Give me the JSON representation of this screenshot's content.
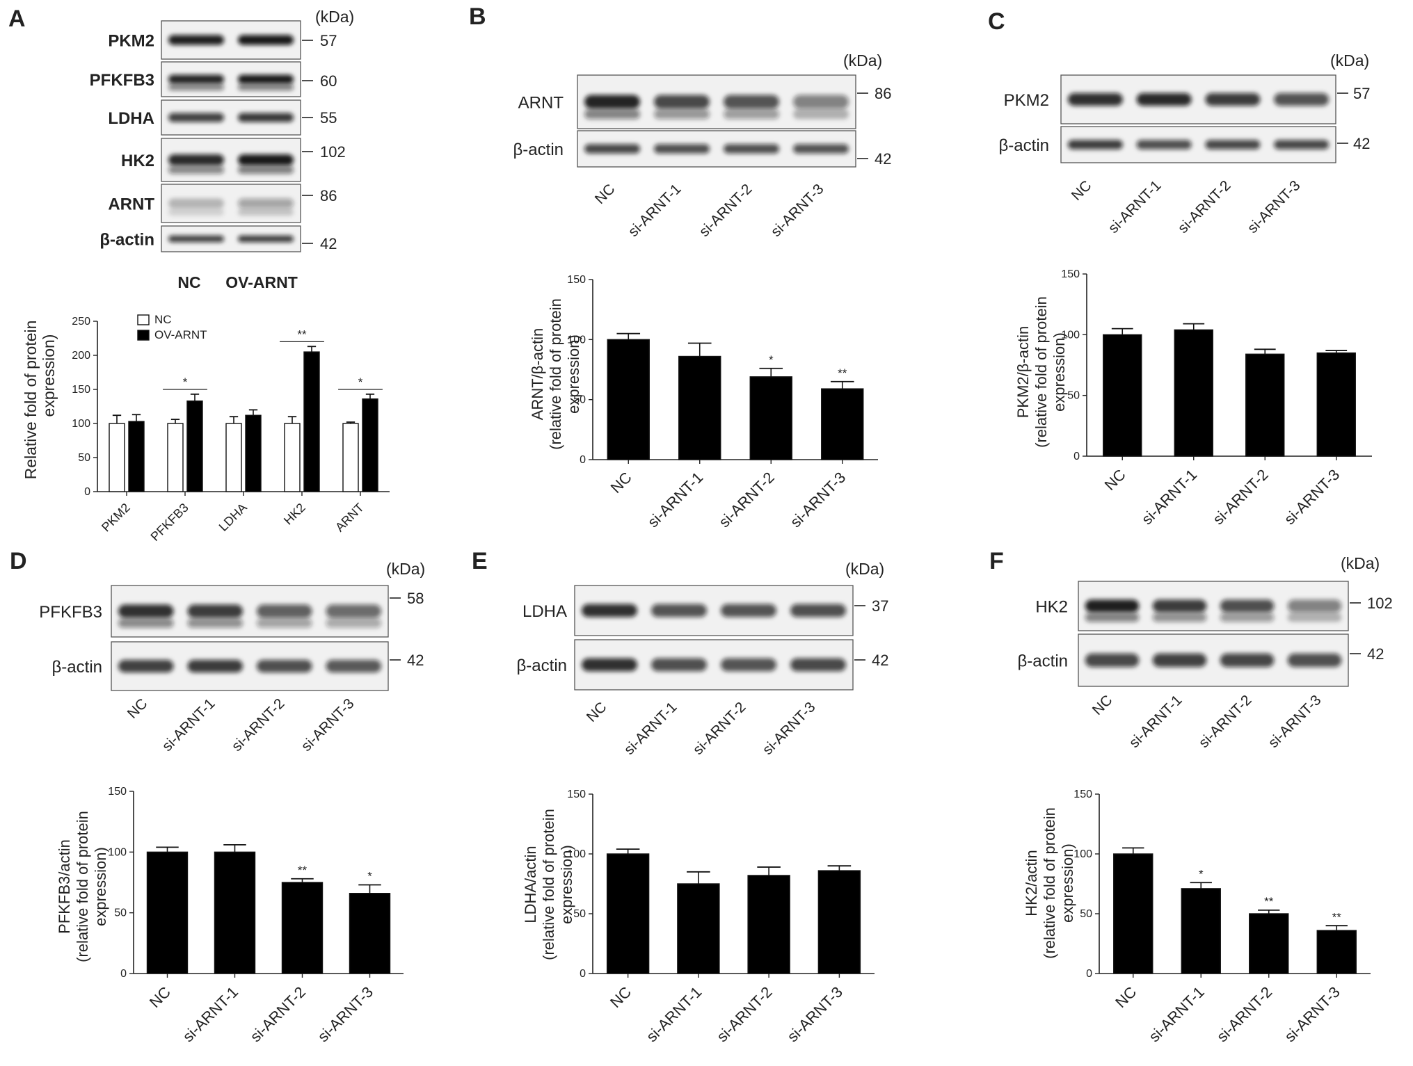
{
  "figure": {
    "panels": [
      {
        "letter": "A",
        "blot": {
          "kda_label": "(kDa)",
          "rows": [
            {
              "label": "PKM2",
              "kda": "57"
            },
            {
              "label": "PFKFB3",
              "kda": "60"
            },
            {
              "label": "LDHA",
              "kda": "55"
            },
            {
              "label": "HK2",
              "kda": "102"
            },
            {
              "label": "ARNT",
              "kda": "86"
            },
            {
              "label": "β-actin",
              "kda": "42"
            }
          ],
          "lanes": [
            "NC",
            "OV-ARNT"
          ],
          "lane_intensity": [
            [
              0.92,
              0.95
            ],
            [
              0.9,
              0.95
            ],
            [
              0.78,
              0.82
            ],
            [
              0.88,
              0.95
            ],
            [
              0.25,
              0.35
            ],
            [
              0.8,
              0.82
            ]
          ]
        }
      },
      {
        "letter": "B",
        "blot": {
          "kda_label": "(kDa)",
          "rows": [
            {
              "label": "ARNT",
              "kda": "86"
            },
            {
              "label": "β-actin",
              "kda": "42"
            }
          ],
          "lanes": [
            "NC",
            "si-ARNT-1",
            "si-ARNT-2",
            "si-ARNT-3"
          ],
          "lane_intensity": [
            [
              0.9,
              0.75,
              0.7,
              0.5
            ],
            [
              0.75,
              0.72,
              0.72,
              0.7
            ]
          ]
        }
      },
      {
        "letter": "C",
        "blot": {
          "kda_label": "(kDa)",
          "rows": [
            {
              "label": "PKM2",
              "kda": "57"
            },
            {
              "label": "β-actin",
              "kda": "42"
            }
          ],
          "lanes": [
            "NC",
            "si-ARNT-1",
            "si-ARNT-2",
            "si-ARNT-3"
          ],
          "lane_intensity": [
            [
              0.85,
              0.88,
              0.8,
              0.7
            ],
            [
              0.8,
              0.72,
              0.75,
              0.75
            ]
          ]
        }
      },
      {
        "letter": "D",
        "blot": {
          "kda_label": "(kDa)",
          "rows": [
            {
              "label": "PFKFB3",
              "kda": "58"
            },
            {
              "label": "β-actin",
              "kda": "42"
            }
          ],
          "lanes": [
            "NC",
            "si-ARNT-1",
            "si-ARNT-2",
            "si-ARNT-3"
          ],
          "lane_intensity": [
            [
              0.85,
              0.8,
              0.65,
              0.6
            ],
            [
              0.78,
              0.8,
              0.72,
              0.68
            ]
          ]
        }
      },
      {
        "letter": "E",
        "blot": {
          "kda_label": "(kDa)",
          "rows": [
            {
              "label": "LDHA",
              "kda": "37"
            },
            {
              "label": "β-actin",
              "kda": "42"
            }
          ],
          "lanes": [
            "NC",
            "si-ARNT-1",
            "si-ARNT-2",
            "si-ARNT-3"
          ],
          "lane_intensity": [
            [
              0.85,
              0.7,
              0.7,
              0.72
            ],
            [
              0.85,
              0.72,
              0.7,
              0.75
            ]
          ]
        }
      },
      {
        "letter": "F",
        "blot": {
          "kda_label": "(kDa)",
          "rows": [
            {
              "label": "HK2",
              "kda": "102"
            },
            {
              "label": "β-actin",
              "kda": "42"
            }
          ],
          "lanes": [
            "NC",
            "si-ARNT-1",
            "si-ARNT-2",
            "si-ARNT-3"
          ],
          "lane_intensity": [
            [
              0.92,
              0.8,
              0.72,
              0.5
            ],
            [
              0.75,
              0.78,
              0.76,
              0.72
            ]
          ]
        }
      }
    ]
  },
  "chart_data": [
    {
      "panel": "A",
      "type": "bar",
      "ylabel": "Relative fold of protein expression",
      "ylim": [
        0,
        250
      ],
      "yticks": [
        0,
        50,
        100,
        150,
        200,
        250
      ],
      "categories": [
        "PKM2",
        "PFKFB3",
        "LDHA",
        "HK2",
        "ARNT"
      ],
      "series": [
        {
          "name": "NC",
          "values": [
            100,
            100,
            100,
            100,
            100
          ],
          "errors": [
            12,
            6,
            10,
            10,
            2
          ],
          "fill": "#ffffff"
        },
        {
          "name": "OV-ARNT",
          "values": [
            103,
            133,
            112,
            205,
            136
          ],
          "errors": [
            10,
            10,
            8,
            8,
            7
          ],
          "fill": "#000000"
        }
      ],
      "significance": [
        {
          "category": "PFKFB3",
          "label": "*"
        },
        {
          "category": "HK2",
          "label": "**"
        },
        {
          "category": "ARNT",
          "label": "*"
        }
      ],
      "legend_position": "top-left"
    },
    {
      "panel": "B",
      "type": "bar",
      "ylabel": "ARNT/β-actin\n(relative fold of protein\nexpression)",
      "ylim": [
        0,
        150
      ],
      "yticks": [
        0,
        50,
        100,
        150
      ],
      "categories": [
        "NC",
        "si-ARNT-1",
        "si-ARNT-2",
        "si-ARNT-3"
      ],
      "values": [
        100,
        86,
        69,
        59
      ],
      "errors": [
        5,
        11,
        7,
        6
      ],
      "significance": [
        "",
        "",
        "*",
        "**"
      ]
    },
    {
      "panel": "C",
      "type": "bar",
      "ylabel": "PKM2/β-actin\n(relative fold of protein\nexpression)",
      "ylim": [
        0,
        150
      ],
      "yticks": [
        0,
        50,
        100,
        150
      ],
      "categories": [
        "NC",
        "si-ARNT-1",
        "si-ARNT-2",
        "si-ARNT-3"
      ],
      "values": [
        100,
        104,
        84,
        85
      ],
      "errors": [
        5,
        5,
        4,
        2
      ],
      "significance": [
        "",
        "",
        "",
        ""
      ]
    },
    {
      "panel": "D",
      "type": "bar",
      "ylabel": "PFKFB3/actin\n(relative fold of protein\nexpression)",
      "ylim": [
        0,
        150
      ],
      "yticks": [
        0,
        50,
        100,
        150
      ],
      "categories": [
        "NC",
        "si-ARNT-1",
        "si-ARNT-2",
        "si-ARNT-3"
      ],
      "values": [
        100,
        100,
        75,
        66
      ],
      "errors": [
        4,
        6,
        3,
        7
      ],
      "significance": [
        "",
        "",
        "**",
        "*"
      ]
    },
    {
      "panel": "E",
      "type": "bar",
      "ylabel": "LDHA/actin\n(relative fold of protein\nexpression)",
      "ylim": [
        0,
        150
      ],
      "yticks": [
        0,
        50,
        100,
        150
      ],
      "categories": [
        "NC",
        "si-ARNT-1",
        "si-ARNT-2",
        "si-ARNT-3"
      ],
      "values": [
        100,
        75,
        82,
        86
      ],
      "errors": [
        4,
        10,
        7,
        4
      ],
      "significance": [
        "",
        "",
        "",
        ""
      ]
    },
    {
      "panel": "F",
      "type": "bar",
      "ylabel": "HK2/actin\n(relative fold of protein\nexpression)",
      "ylim": [
        0,
        150
      ],
      "yticks": [
        0,
        50,
        100,
        150
      ],
      "categories": [
        "NC",
        "si-ARNT-1",
        "si-ARNT-2",
        "si-ARNT-3"
      ],
      "values": [
        100,
        71,
        50,
        36
      ],
      "errors": [
        5,
        5,
        3,
        4
      ],
      "significance": [
        "",
        "*",
        "**",
        "**"
      ]
    }
  ]
}
